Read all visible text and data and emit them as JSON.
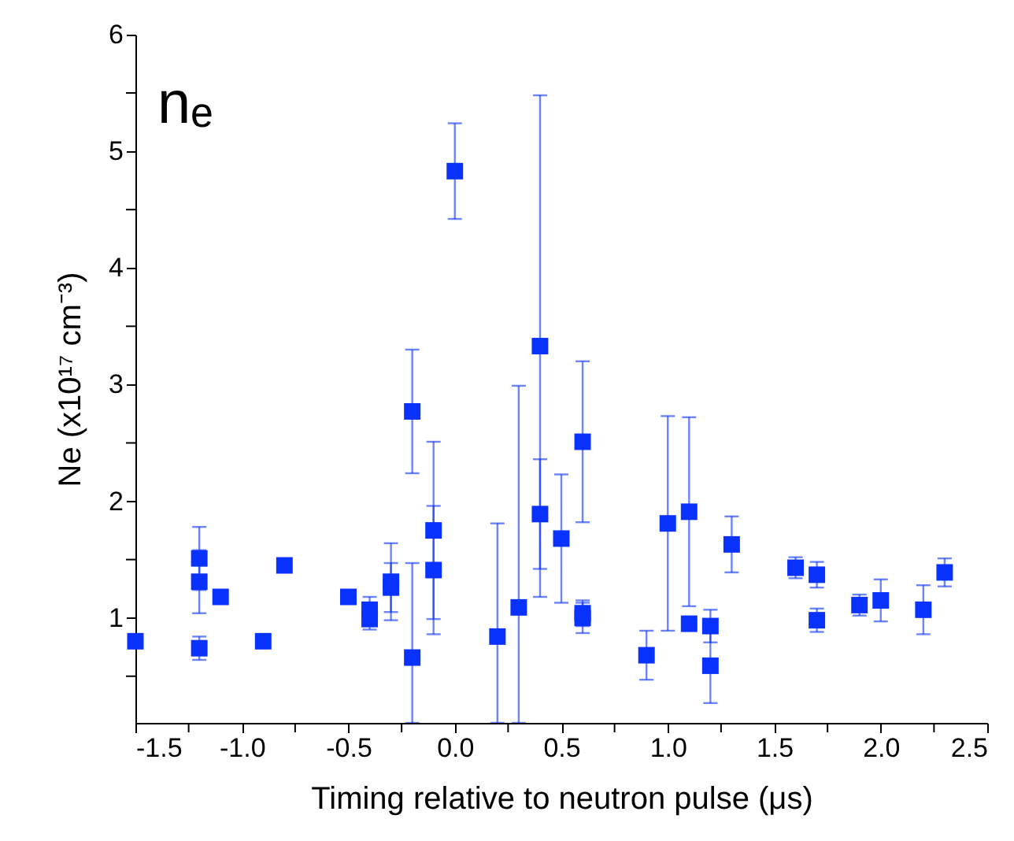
{
  "chart_data": {
    "type": "scatter",
    "xlabel": "Timing relative to neutron pulse (μs)",
    "ylabel": "Ne (x10¹⁷ cm⁻³)",
    "annotations": [
      "nₑ"
    ],
    "x": [
      -1.5,
      -1.2,
      -1.2,
      -1.2,
      -1.1,
      -0.9,
      -0.8,
      -0.5,
      -0.4,
      -0.4,
      -0.3,
      -0.3,
      -0.2,
      -0.2,
      -0.1,
      -0.1,
      0.0,
      0.2,
      0.3,
      0.4,
      0.4,
      0.5,
      0.6,
      0.6,
      0.6,
      0.9,
      1.0,
      1.1,
      1.1,
      1.2,
      1.2,
      1.3,
      1.6,
      1.7,
      1.7,
      1.9,
      2.0,
      2.2,
      2.3
    ],
    "series": [
      {
        "color": "#0a32ff",
        "marker": "square",
        "values": [
          0.8,
          1.51,
          1.31,
          0.74,
          1.18,
          0.8,
          1.45,
          1.18,
          1.07,
          0.99,
          1.31,
          1.26,
          2.77,
          0.66,
          1.75,
          1.41,
          4.83,
          0.84,
          1.09,
          3.33,
          1.89,
          1.68,
          2.51,
          1.04,
          1.0,
          0.68,
          1.81,
          1.91,
          0.95,
          0.93,
          0.59,
          1.63,
          1.43,
          1.37,
          0.98,
          1.11,
          1.15,
          1.07,
          1.39
        ],
        "errors": [
          null,
          0.27,
          0.27,
          0.1,
          null,
          0.03,
          null,
          0.05,
          0.11,
          0.09,
          0.33,
          0.21,
          0.53,
          [
            0.1,
            1.47
          ],
          0.76,
          0.55,
          0.41,
          [
            0.1,
            1.81
          ],
          [
            0.1,
            2.99
          ],
          2.15,
          0.47,
          0.55,
          0.69,
          0.11,
          0.13,
          0.21,
          0.92,
          0.81,
          0.03,
          0.14,
          0.32,
          0.24,
          0.09,
          0.11,
          0.1,
          0.09,
          0.18,
          0.21,
          0.12
        ]
      }
    ],
    "xlim": [
      -1.5,
      2.5
    ],
    "xticks": [
      {
        "value": -1.5,
        "label": "-1.5"
      },
      {
        "value": -1.25,
        "label": null
      },
      {
        "value": -1.0,
        "label": "-1.0"
      },
      {
        "value": -0.75,
        "label": null
      },
      {
        "value": -0.5,
        "label": "-0.5"
      },
      {
        "value": -0.25,
        "label": null
      },
      {
        "value": 0.0,
        "label": "0.0"
      },
      {
        "value": 0.25,
        "label": null
      },
      {
        "value": 0.5,
        "label": "0.5"
      },
      {
        "value": 0.75,
        "label": null
      },
      {
        "value": 1.0,
        "label": "1.0"
      },
      {
        "value": 1.25,
        "label": null
      },
      {
        "value": 1.5,
        "label": "1.5"
      },
      {
        "value": 1.75,
        "label": null
      },
      {
        "value": 2.0,
        "label": "2.0"
      },
      {
        "value": 2.25,
        "label": null
      },
      {
        "value": 2.5,
        "label": "2.5"
      }
    ],
    "ylim": [
      0.1,
      6
    ],
    "yticks": [
      {
        "value": 0.5,
        "label": null
      },
      1,
      {
        "value": 1.5,
        "label": null
      },
      2,
      {
        "value": 2.5,
        "label": null
      },
      3,
      {
        "value": 3.5,
        "label": null
      },
      4,
      {
        "value": 4.5,
        "label": null
      },
      5,
      {
        "value": 5.5,
        "label": null
      },
      6
    ],
    "grid": false,
    "legend": false
  }
}
